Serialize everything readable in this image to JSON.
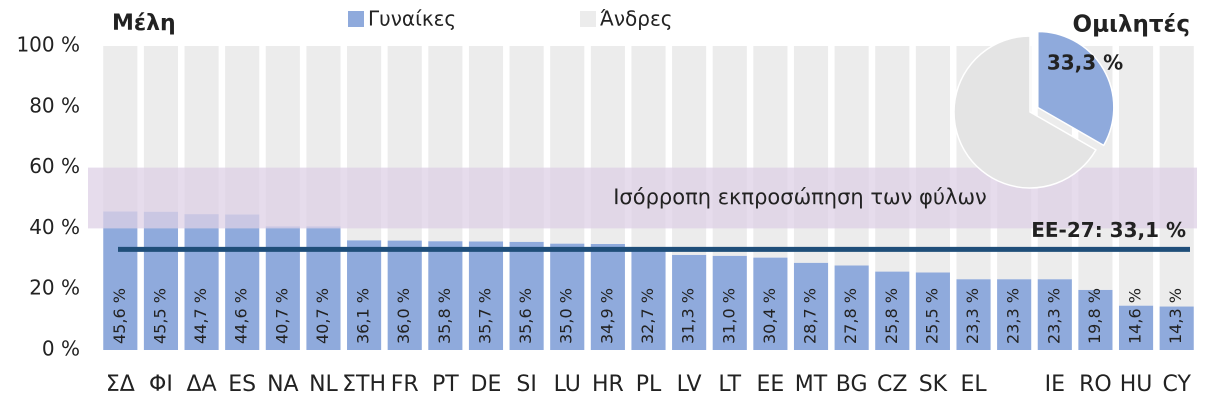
{
  "chart_data": {
    "type": "bar",
    "stacked": true,
    "title": "Μέλη",
    "categories": [
      "ΣΔ",
      "ΦΙ",
      "ΔΑ",
      "ES",
      "NA",
      "NL",
      "ΣΤΗ",
      "FR",
      "PT",
      "DE",
      "SI",
      "LU",
      "HR",
      "PL",
      "LV",
      "LT",
      "EE",
      "MT",
      "BG",
      "CZ",
      "SK",
      "EL",
      null,
      "IE",
      "RO",
      "HU",
      "CY"
    ],
    "series": [
      {
        "name": "Γυναίκες",
        "color": "#8faadc",
        "values": [
          45.6,
          45.5,
          44.7,
          44.6,
          40.7,
          40.7,
          36.1,
          36.0,
          35.8,
          35.7,
          35.6,
          35.0,
          34.9,
          32.7,
          31.3,
          31.0,
          30.4,
          28.7,
          27.8,
          25.8,
          25.5,
          23.3,
          23.3,
          23.3,
          19.8,
          14.6,
          14.3
        ],
        "value_labels": [
          "45,6 %",
          "45,5 %",
          "44,7 %",
          "44,6 %",
          "40,7 %",
          "40,7 %",
          "36,1 %",
          "36,0 %",
          "35,8 %",
          "35,7 %",
          "35,6 %",
          "35,0 %",
          "34,9 %",
          "32,7 %",
          "31,3 %",
          "31,0 %",
          "30,4 %",
          "28,7 %",
          "27,8 %",
          "25,8 %",
          "25,5 %",
          "23,3 %",
          "23,3 %",
          "23,3 %",
          "19,8 %",
          "14,6 %",
          "14,3 %"
        ]
      },
      {
        "name": "Άνδρες",
        "color": "#ececec",
        "values": [
          54.4,
          54.5,
          55.3,
          55.4,
          59.3,
          59.3,
          63.9,
          64.0,
          64.2,
          64.3,
          64.4,
          65.0,
          65.1,
          67.3,
          68.7,
          69.0,
          69.6,
          71.3,
          72.2,
          74.2,
          74.5,
          76.7,
          76.7,
          76.7,
          80.2,
          85.4,
          85.7
        ]
      }
    ],
    "ylim": [
      0,
      100
    ],
    "yticks": [
      {
        "value": 0,
        "label": "0 %"
      },
      {
        "value": 20,
        "label": "20 %"
      },
      {
        "value": 40,
        "label": "40 %"
      },
      {
        "value": 60,
        "label": "60 %"
      },
      {
        "value": 80,
        "label": "80 %"
      },
      {
        "value": 100,
        "label": "100 %"
      }
    ],
    "band": {
      "range": [
        40,
        60
      ],
      "label": "Ισόρροπη εκπροσώπηση των φύλων",
      "color": "#ddd0e6"
    },
    "reference": {
      "value": 33.1,
      "label": "ΕΕ-27: 33,1 %",
      "color": "#1f4e79"
    },
    "pie": {
      "title": "Ομιλητές",
      "values": [
        33.3,
        66.7
      ],
      "colors": [
        "#8faadc",
        "#e4e4e4"
      ],
      "value_label": "33,3 %"
    }
  }
}
